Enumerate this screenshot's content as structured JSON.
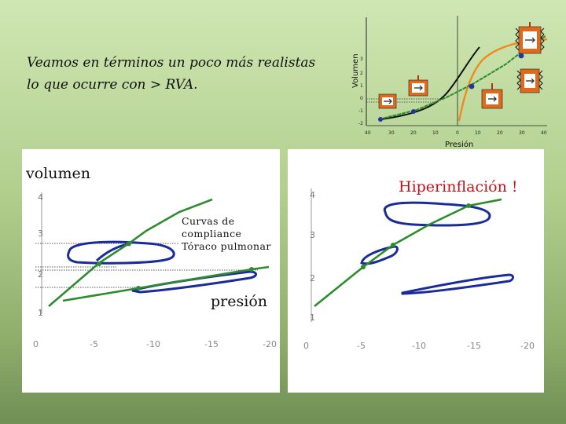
{
  "title": "Veamos en términos un poco más realistas lo que ocurre con > RVA.",
  "top_chart": {
    "ylabel": "Volumen",
    "xlabel": "Presión",
    "y_ticks": [
      "3",
      "2",
      "1",
      "0",
      "-1",
      "-2"
    ],
    "x_ticks": [
      "40",
      "30",
      "20",
      "10",
      "0",
      "10",
      "20",
      "30",
      "40"
    ]
  },
  "left_panel": {
    "ylabel": "volumen",
    "annotation_lines": [
      "Curvas de",
      "compliance",
      "Tóraco pulmonar"
    ],
    "xlabel": "presión",
    "y_ticks": [
      "4",
      "3",
      "2",
      "1"
    ],
    "x_ticks": [
      "0",
      "-5",
      "-10",
      "-15",
      "-20"
    ]
  },
  "right_panel": {
    "title": "Hiperinflación !",
    "y_ticks": [
      "4",
      "3",
      "2",
      "1"
    ],
    "x_ticks": [
      "0",
      "-5",
      "-10",
      "-15",
      "-20"
    ]
  },
  "colors": {
    "green_curve": "#2e8b2e",
    "loop_blue": "#1a2b9a",
    "orange_curve": "#f08a1c",
    "black_curve": "#111111",
    "title_red": "#c0141c"
  }
}
